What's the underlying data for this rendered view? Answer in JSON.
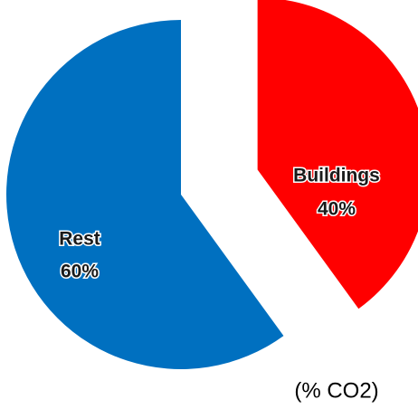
{
  "chart_data": {
    "type": "pie",
    "categories": [
      "Buildings",
      "Rest"
    ],
    "values": [
      40,
      60
    ],
    "value_labels": [
      "40%",
      "60%"
    ],
    "colors": [
      "#ff0000",
      "#0070c0"
    ],
    "caption": "(% CO2)"
  }
}
